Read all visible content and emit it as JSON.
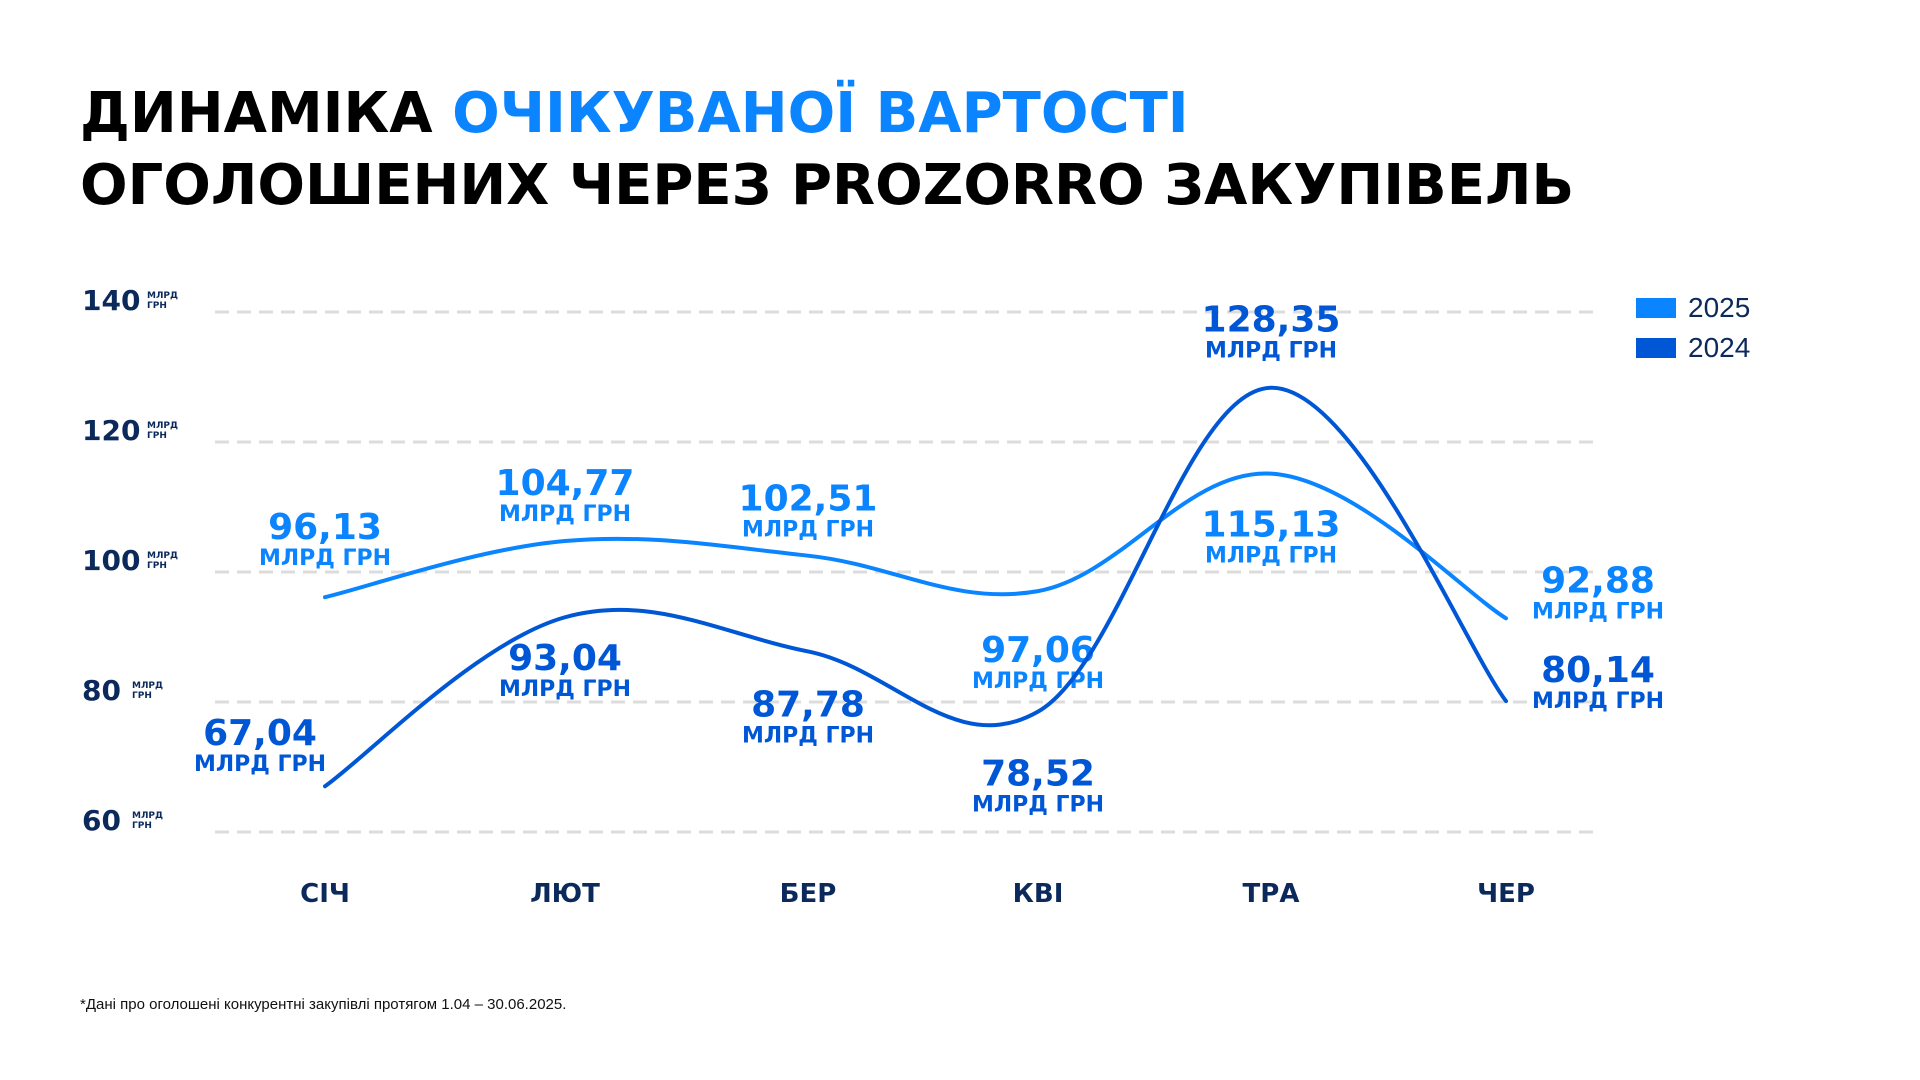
{
  "title": {
    "line1_part1": "ДИНАМІКА ",
    "line1_accent": "ОЧІКУВАНОЇ ВАРТОСТІ",
    "line2": "ОГОЛОШЕНИХ ЧЕРЕЗ PROZORRO ЗАКУПІВЕЛЬ"
  },
  "footnote": "*Дані про оголошені конкурентні закупівлі протягом 1.04 – 30.06.2025.",
  "chart_data": {
    "type": "line",
    "categories": [
      "СІЧ",
      "ЛЮТ",
      "БЕР",
      "КВІ",
      "ТРА",
      "ЧЕР"
    ],
    "y_ticks": [
      60,
      80,
      100,
      120,
      140
    ],
    "y_tick_unit": "МЛРД ГРН",
    "ylim": [
      60,
      140
    ],
    "grid": true,
    "legend_position": "top-right",
    "series": [
      {
        "name": "2025",
        "color": "#0a84ff",
        "values": [
          96.13,
          104.77,
          102.51,
          97.06,
          115.13,
          92.88
        ],
        "labels": [
          "96,13",
          "104,77",
          "102,51",
          "97,06",
          "115,13",
          "92,88"
        ]
      },
      {
        "name": "2024",
        "color": "#0057d6",
        "values": [
          67.04,
          93.04,
          87.78,
          78.52,
          128.35,
          80.14
        ],
        "labels": [
          "67,04",
          "93,04",
          "87,78",
          "78,52",
          "128,35",
          "80,14"
        ]
      }
    ],
    "data_label_unit": "МЛРД ГРН",
    "axis_color": "#0b2a5b"
  }
}
